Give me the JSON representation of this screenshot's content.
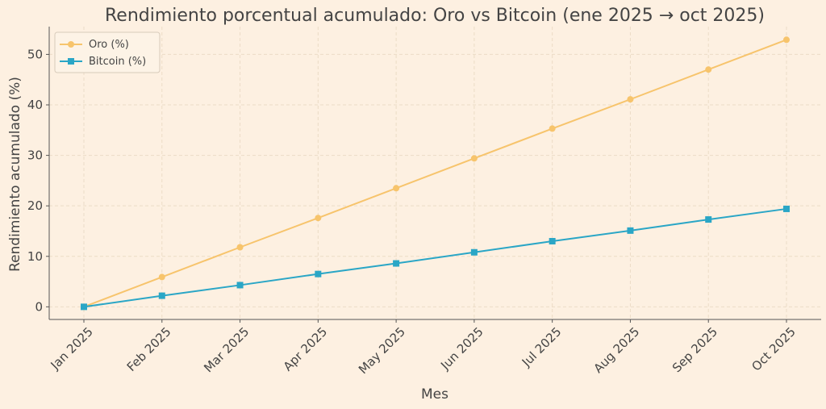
{
  "chart_data": {
    "type": "line",
    "title": "Rendimiento porcentual acumulado: Oro vs Bitcoin (ene 2025 → oct 2025)",
    "xlabel": "Mes",
    "ylabel": "Rendimiento acumulado (%)",
    "categories": [
      "Jan 2025",
      "Feb 2025",
      "Mar 2025",
      "Apr 2025",
      "May 2025",
      "Jun 2025",
      "Jul 2025",
      "Aug 2025",
      "Sep 2025",
      "Oct 2025"
    ],
    "ylim": [
      -2.5,
      55.5
    ],
    "yticks": [
      0,
      10,
      20,
      30,
      40,
      50
    ],
    "grid": true,
    "legend_position": "top-left",
    "series": [
      {
        "name": "Oro (%)",
        "color": "#f7c46c",
        "marker": "circle",
        "values": [
          0,
          5.9,
          11.8,
          17.6,
          23.5,
          29.4,
          35.3,
          41.1,
          47.0,
          52.9
        ]
      },
      {
        "name": "Bitcoin (%)",
        "color": "#2aa6c6",
        "marker": "square",
        "values": [
          0,
          2.2,
          4.3,
          6.5,
          8.6,
          10.8,
          13.0,
          15.1,
          17.3,
          19.4
        ]
      }
    ]
  }
}
